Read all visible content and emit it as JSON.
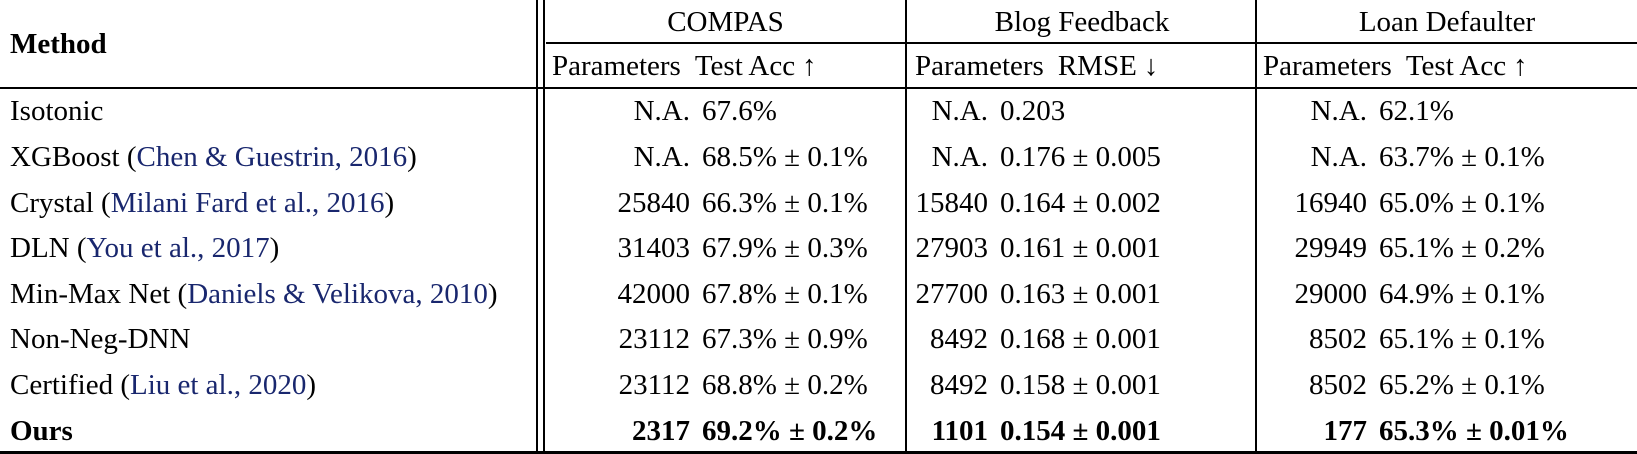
{
  "colors": {
    "citation_link": "#19276e",
    "text": "#000000",
    "rule": "#000000",
    "background": "#ffffff"
  },
  "table": {
    "method_header": "Method",
    "groups": [
      {
        "title": "COMPAS",
        "param_header": "Parameters",
        "metric_header": "Test Acc",
        "arrow": "↑"
      },
      {
        "title": "Blog Feedback",
        "param_header": "Parameters",
        "metric_header": "RMSE",
        "arrow": "↓"
      },
      {
        "title": "Loan Defaulter",
        "param_header": "Parameters",
        "metric_header": "Test Acc",
        "arrow": "↑"
      }
    ],
    "rows": [
      {
        "bold": false,
        "method_parts": [
          {
            "t": "Isotonic",
            "link": false
          }
        ],
        "cells": [
          {
            "params": "N.A.",
            "value": "67.6%"
          },
          {
            "params": "N.A.",
            "value": "0.203"
          },
          {
            "params": "N.A.",
            "value": "62.1%"
          }
        ]
      },
      {
        "bold": false,
        "method_parts": [
          {
            "t": "XGBoost (",
            "link": false
          },
          {
            "t": "Chen & Guestrin, 2016",
            "link": true
          },
          {
            "t": ")",
            "link": false
          }
        ],
        "cells": [
          {
            "params": "N.A.",
            "value": "68.5% ± 0.1%"
          },
          {
            "params": "N.A.",
            "value": "0.176 ± 0.005"
          },
          {
            "params": "N.A.",
            "value": "63.7% ± 0.1%"
          }
        ]
      },
      {
        "bold": false,
        "method_parts": [
          {
            "t": "Crystal (",
            "link": false
          },
          {
            "t": "Milani Fard et al., 2016",
            "link": true
          },
          {
            "t": ")",
            "link": false
          }
        ],
        "cells": [
          {
            "params": "25840",
            "value": "66.3% ± 0.1%"
          },
          {
            "params": "15840",
            "value": "0.164 ± 0.002"
          },
          {
            "params": "16940",
            "value": "65.0% ± 0.1%"
          }
        ]
      },
      {
        "bold": false,
        "method_parts": [
          {
            "t": "DLN (",
            "link": false
          },
          {
            "t": "You et al., 2017",
            "link": true
          },
          {
            "t": ")",
            "link": false
          }
        ],
        "cells": [
          {
            "params": "31403",
            "value": "67.9% ± 0.3%"
          },
          {
            "params": "27903",
            "value": "0.161 ± 0.001"
          },
          {
            "params": "29949",
            "value": "65.1% ± 0.2%"
          }
        ]
      },
      {
        "bold": false,
        "method_parts": [
          {
            "t": "Min-Max Net (",
            "link": false
          },
          {
            "t": "Daniels & Velikova, 2010",
            "link": true
          },
          {
            "t": ")",
            "link": false
          }
        ],
        "cells": [
          {
            "params": "42000",
            "value": "67.8% ± 0.1%"
          },
          {
            "params": "27700",
            "value": "0.163 ± 0.001"
          },
          {
            "params": "29000",
            "value": "64.9% ± 0.1%"
          }
        ]
      },
      {
        "bold": false,
        "method_parts": [
          {
            "t": "Non-Neg-DNN",
            "link": false
          }
        ],
        "cells": [
          {
            "params": "23112",
            "value": "67.3% ± 0.9%"
          },
          {
            "params": "8492",
            "value": "0.168 ± 0.001"
          },
          {
            "params": "8502",
            "value": "65.1% ± 0.1%"
          }
        ]
      },
      {
        "bold": false,
        "method_parts": [
          {
            "t": "Certified (",
            "link": false
          },
          {
            "t": "Liu et al., 2020",
            "link": true
          },
          {
            "t": ")",
            "link": false
          }
        ],
        "cells": [
          {
            "params": "23112",
            "value": "68.8% ± 0.2%"
          },
          {
            "params": "8492",
            "value": "0.158 ± 0.001"
          },
          {
            "params": "8502",
            "value": "65.2% ± 0.1%"
          }
        ]
      },
      {
        "bold": true,
        "method_parts": [
          {
            "t": "Ours",
            "link": false
          }
        ],
        "cells": [
          {
            "params": "2317",
            "value": "69.2% ± 0.2%"
          },
          {
            "params": "1101",
            "value": "0.154 ± 0.001"
          },
          {
            "params": "177",
            "value": "65.3% ± 0.01%"
          }
        ]
      }
    ]
  }
}
